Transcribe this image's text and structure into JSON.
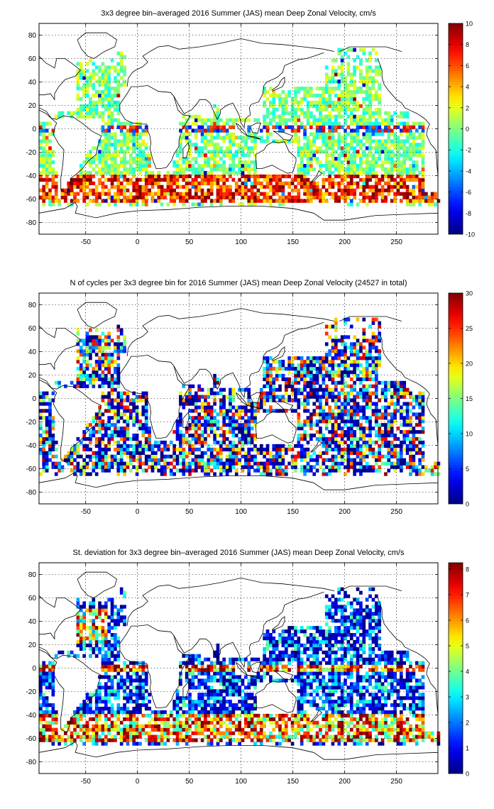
{
  "chart_data": [
    {
      "type": "heatmap",
      "title": "3x3 degree bin–averaged 2016 Summer (JAS) mean Deep Zonal Velocity, cm/s",
      "xlabel": "",
      "ylabel": "",
      "xlim": [
        -95,
        290
      ],
      "ylim": [
        -90,
        90
      ],
      "xticks": [
        -50,
        0,
        50,
        100,
        150,
        200,
        250
      ],
      "yticks": [
        -80,
        -60,
        -40,
        -20,
        0,
        20,
        40,
        60,
        80
      ],
      "grid": true,
      "bin_size_deg": 3,
      "colorbar": {
        "min": -10,
        "max": 10,
        "ticks": [
          -10,
          -8,
          -6,
          -4,
          -2,
          0,
          2,
          4,
          6,
          8,
          10
        ],
        "colormap": "jet"
      }
    },
    {
      "type": "heatmap",
      "title": "N of cycles per 3x3 degree bin for 2016 Summer (JAS) mean Deep Zonal Velocity (24527 in total)",
      "xlabel": "",
      "ylabel": "",
      "xlim": [
        -95,
        290
      ],
      "ylim": [
        -90,
        90
      ],
      "xticks": [
        -50,
        0,
        50,
        100,
        150,
        200,
        250
      ],
      "yticks": [
        -80,
        -60,
        -40,
        -20,
        0,
        20,
        40,
        60,
        80
      ],
      "grid": true,
      "bin_size_deg": 3,
      "colorbar": {
        "min": 0,
        "max": 30,
        "ticks": [
          0,
          5,
          10,
          15,
          20,
          25,
          30
        ],
        "colormap": "jet"
      }
    },
    {
      "type": "heatmap",
      "title": "St. deviation for 3x3 degree bin–averaged 2016 Summer (JAS) mean Deep Zonal Velocity, cm/s",
      "xlabel": "",
      "ylabel": "",
      "xlim": [
        -95,
        290
      ],
      "ylim": [
        -90,
        90
      ],
      "xticks": [
        -50,
        0,
        50,
        100,
        150,
        200,
        250
      ],
      "yticks": [
        -80,
        -60,
        -40,
        -20,
        0,
        20,
        40,
        60,
        80
      ],
      "grid": true,
      "bin_size_deg": 3,
      "colorbar": {
        "min": 0,
        "max": 8.25,
        "ticks": [
          0,
          1,
          2,
          3,
          4,
          5,
          6,
          7,
          8
        ],
        "colormap": "jet"
      }
    }
  ]
}
